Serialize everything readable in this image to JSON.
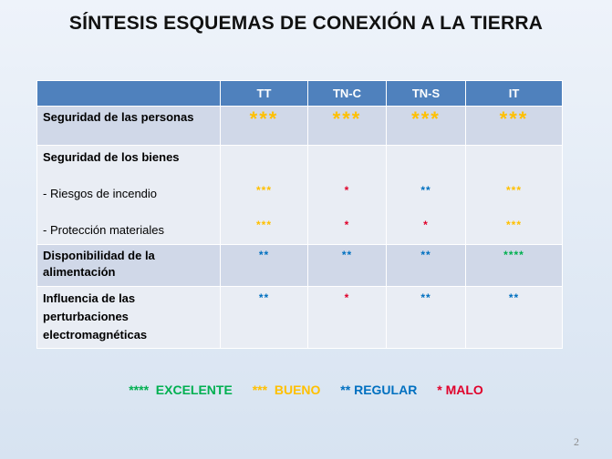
{
  "title": "SÍNTESIS ESQUEMAS DE CONEXIÓN A LA TIERRA",
  "table": {
    "columns": [
      "TT",
      "TN-C",
      "TN-S",
      "IT"
    ],
    "rows": {
      "seguridad_personas": {
        "label": "Seguridad de las personas",
        "values": [
          "***",
          "***",
          "***",
          "***"
        ]
      },
      "seguridad_bienes": {
        "label": "Seguridad de los bienes",
        "sub1_label": "- Riesgos de incendio",
        "sub1_values": [
          "***",
          "*",
          "**",
          "***"
        ],
        "sub2_label": "- Protección materiales",
        "sub2_values": [
          "***",
          "*",
          "*",
          "***"
        ]
      },
      "disponibilidad": {
        "label": "Disponibilidad de la alimentación",
        "values": [
          "**",
          "**",
          "**",
          "****"
        ]
      },
      "influencia": {
        "label": "Influencia de las perturbaciones electromagnéticas",
        "values": [
          "**",
          "*",
          "**",
          "**"
        ]
      }
    }
  },
  "legend": {
    "excelente": {
      "stars": "****",
      "label": "EXCELENTE",
      "color": "#00b050"
    },
    "bueno": {
      "stars": "***",
      "label": "BUENO",
      "color": "#ffc000"
    },
    "regular": {
      "stars": "**",
      "label": "REGULAR",
      "color": "#0070c0"
    },
    "malo": {
      "stars": "*",
      "label": "MALO",
      "color": "#e0002a"
    }
  },
  "page_number": "2"
}
